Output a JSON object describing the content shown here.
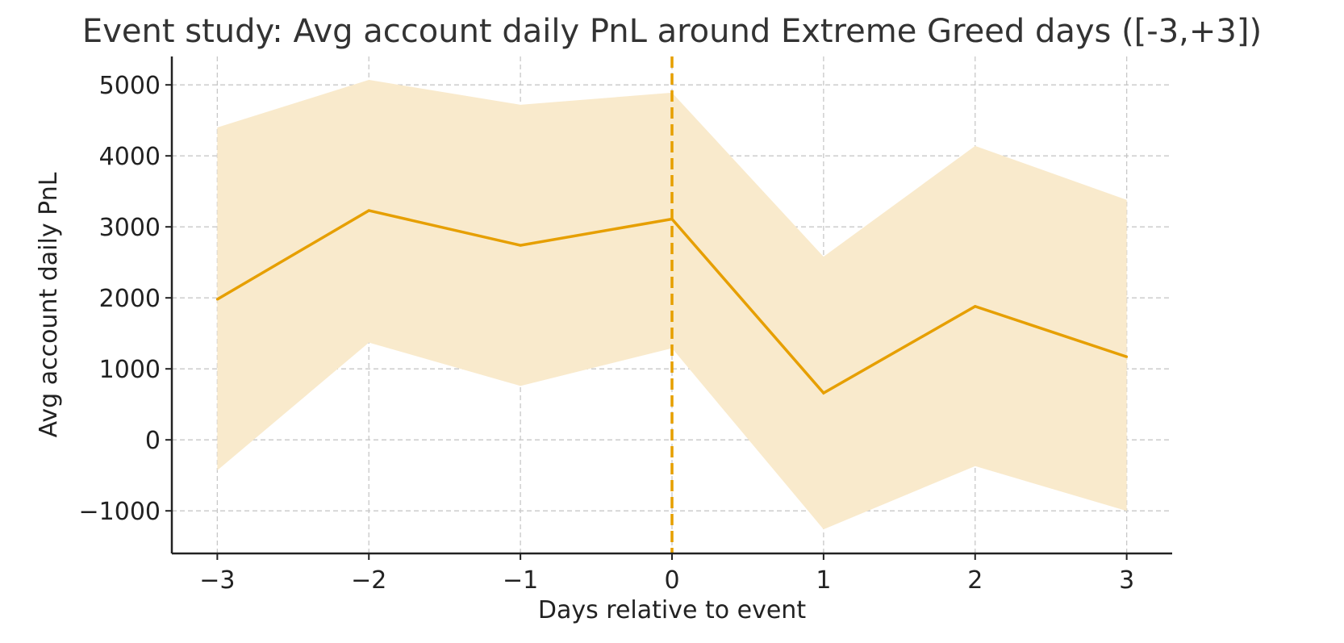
{
  "chart_data": {
    "type": "line",
    "title": "Event study: Avg account daily PnL around Extreme Greed days ([-3,+3])",
    "xlabel": "Days relative to event",
    "ylabel": "Avg account daily PnL",
    "x": [
      -3,
      -2,
      -1,
      0,
      1,
      2,
      3
    ],
    "x_tick_labels": [
      "−3",
      "−2",
      "−1",
      "0",
      "1",
      "2",
      "3"
    ],
    "y_ticks": [
      -1000,
      0,
      1000,
      2000,
      3000,
      4000,
      5000
    ],
    "y_tick_labels": [
      "−1000",
      "0",
      "1000",
      "2000",
      "3000",
      "4000",
      "5000"
    ],
    "xlim": [
      -3.3,
      3.3
    ],
    "ylim": [
      -1600,
      5400
    ],
    "grid": true,
    "series": [
      {
        "values": [
          1980,
          3230,
          2740,
          3110,
          660,
          1880,
          1170
        ],
        "band_lower": [
          -430,
          1370,
          760,
          1290,
          -1260,
          -370,
          -1000
        ],
        "band_upper": [
          4400,
          5070,
          4720,
          4890,
          2580,
          4140,
          3380
        ]
      }
    ],
    "event_line_x": 0,
    "colors": {
      "line": "#E69F00",
      "band": "#F9EACC",
      "event_line": "#E69F00",
      "grid": "#c8c8c8",
      "axis": "#222222",
      "text": "#222222",
      "title": "#333333"
    }
  }
}
